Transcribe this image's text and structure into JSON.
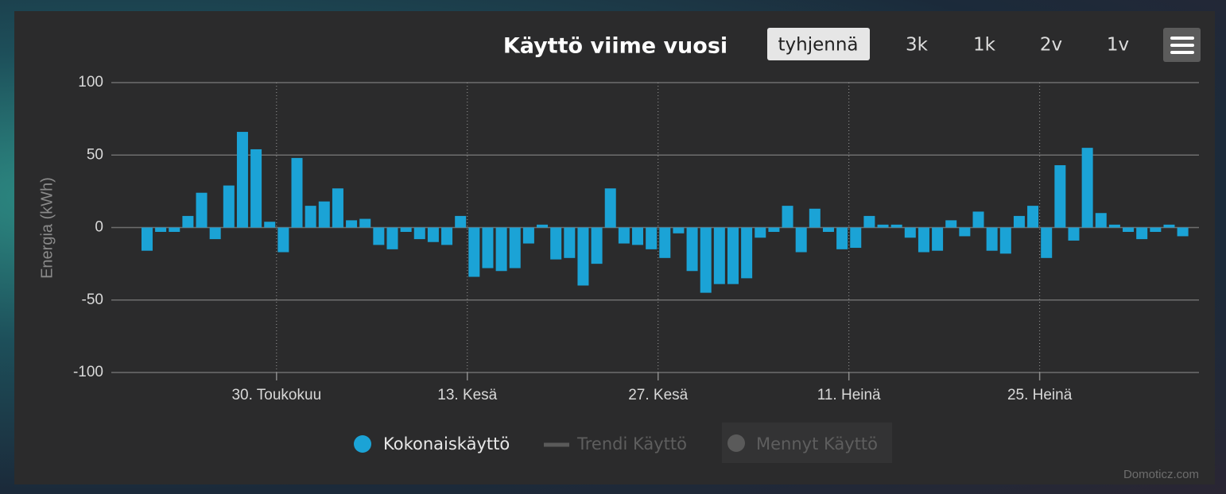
{
  "chart_data": {
    "type": "bar",
    "title": "Käyttö viime vuosi",
    "toolbar": [
      "tyhjennä",
      "3k",
      "1k",
      "2v",
      "1v"
    ],
    "y_label": "Energia (kWh)",
    "categories": [
      null,
      null,
      null,
      null,
      null,
      null,
      null,
      null,
      null,
      null,
      "30. Toukokuu",
      null,
      null,
      null,
      null,
      null,
      null,
      null,
      null,
      null,
      null,
      null,
      null,
      null,
      "13. Kesä",
      null,
      null,
      null,
      null,
      null,
      null,
      null,
      null,
      null,
      null,
      null,
      null,
      null,
      "27. Kesä",
      null,
      null,
      null,
      null,
      null,
      null,
      null,
      null,
      null,
      null,
      null,
      null,
      null,
      "11. Heinä",
      null,
      null,
      null,
      null,
      null,
      null,
      null,
      null,
      null,
      null,
      null,
      null,
      null,
      "25. Heinä",
      null,
      null,
      null,
      null,
      null,
      null,
      null,
      null,
      null,
      null
    ],
    "series": [
      {
        "name": "Kokonaiskäyttö",
        "color": "#1ba3d6",
        "values": [
          -16,
          -3,
          -3,
          8,
          24,
          -8,
          29,
          66,
          54,
          4,
          -17,
          48,
          15,
          18,
          27,
          5,
          6,
          -12,
          -15,
          -3,
          -8,
          -10,
          -12,
          8,
          -34,
          -28,
          -30,
          -28,
          -11,
          2,
          -22,
          -21,
          -40,
          -25,
          27,
          -11,
          -12,
          -15,
          -21,
          -4,
          -30,
          -45,
          -39,
          -39,
          -35,
          -7,
          -3,
          15,
          -17,
          13,
          -3,
          -15,
          -14,
          8,
          2,
          2,
          -7,
          -17,
          -16,
          5,
          -6,
          11,
          -16,
          -18,
          8,
          15,
          -21,
          43,
          -9,
          55,
          10,
          2,
          -3,
          -8,
          -3,
          2,
          -6
        ]
      }
    ],
    "legend_inactive": [
      "Trendi Käyttö",
      "Mennyt Käyttö"
    ],
    "ylim": [
      -100,
      100
    ],
    "yticks": [
      -100,
      -50,
      0,
      50,
      100
    ],
    "grid": true,
    "credits": "Domoticz.com"
  }
}
